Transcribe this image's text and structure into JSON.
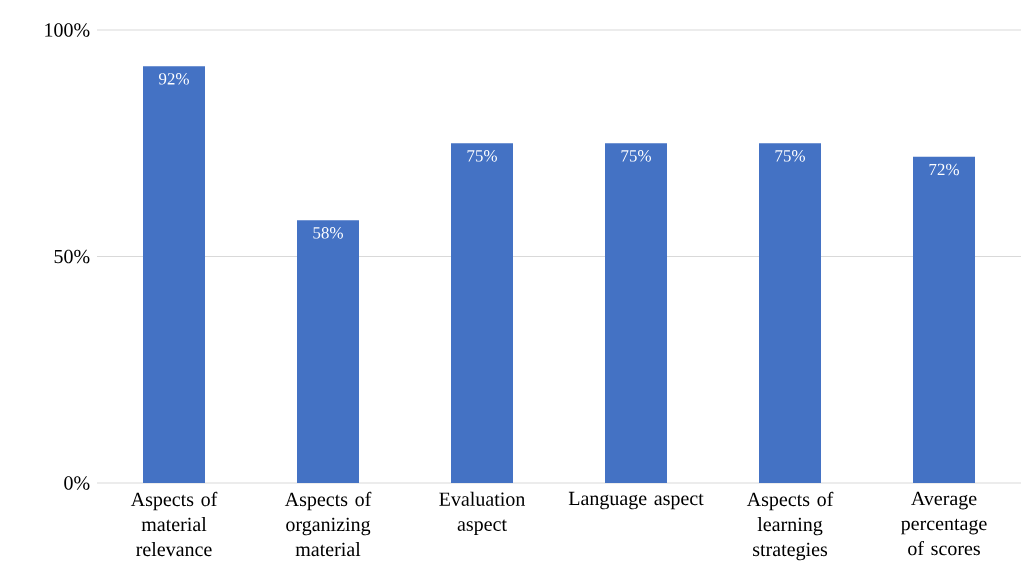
{
  "chart_data": {
    "type": "bar",
    "categories": [
      "Aspects of material relevance",
      "Aspects of organizing material",
      "Evaluation aspect",
      "Language aspect",
      "Aspects of learning strategies",
      "Average percentage of scores"
    ],
    "values": [
      92,
      58,
      75,
      75,
      75,
      72
    ],
    "value_labels": [
      "92%",
      "58%",
      "75%",
      "75%",
      "75%",
      "72%"
    ],
    "color": "#4472c4",
    "ylim": [
      0,
      100
    ],
    "yticks": [
      {
        "value": 0,
        "label": "0%"
      },
      {
        "value": 50,
        "label": "50%"
      },
      {
        "value": 100,
        "label": "100%"
      }
    ],
    "grid": "y"
  }
}
